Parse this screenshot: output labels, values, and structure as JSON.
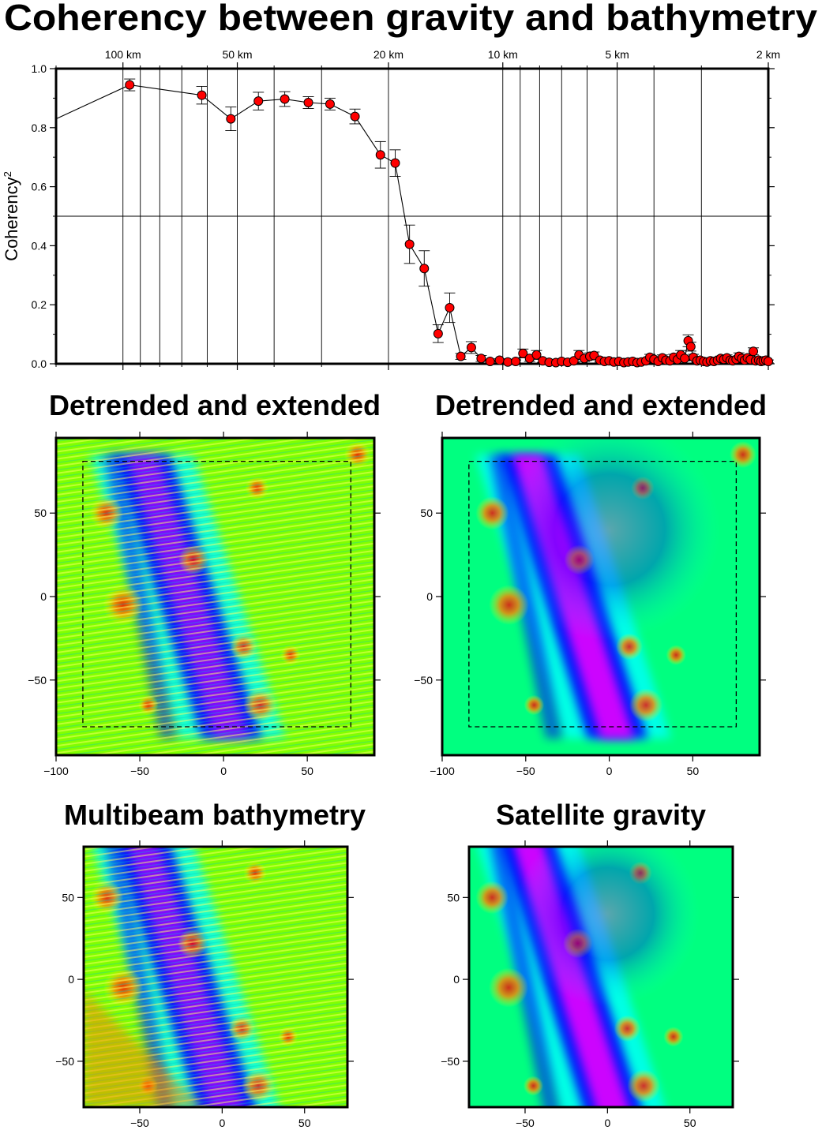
{
  "title": "Coherency between gravity and bathymetry",
  "chart_data": [
    {
      "type": "scatter",
      "title": "Coherency between gravity and bathymetry",
      "xlabel": "",
      "ylabel": "Coherency",
      "ylabel_superscript": "2",
      "x_unit": "km",
      "x_scale": "log-wavelength (decreasing to the right)",
      "xlim": [
        150,
        2
      ],
      "ylim": [
        0,
        1
      ],
      "y_ticks": [
        "0.0",
        "0.2",
        "0.4",
        "0.6",
        "0.8",
        "1.0"
      ],
      "x_top_ticks": [
        {
          "km": 100,
          "label": "100 km"
        },
        {
          "km": 50,
          "label": "50 km"
        },
        {
          "km": 20,
          "label": "20 km"
        },
        {
          "km": 10,
          "label": "10 km"
        },
        {
          "km": 5,
          "label": "5 km"
        },
        {
          "km": 2,
          "label": "2 km"
        }
      ],
      "x_grid_lines_km": [
        100,
        90,
        80,
        70,
        60,
        50,
        40,
        30,
        20,
        10,
        9,
        8,
        7,
        6,
        5,
        4,
        3,
        2
      ],
      "reference_line_y": 0.5,
      "grid": true,
      "line_start": {
        "wavelength_km": 150,
        "coherency": 0.83
      },
      "series": [
        {
          "marker_color": "#ff0000",
          "points": [
            [
              96,
              0.945,
              0.02
            ],
            [
              62,
              0.91,
              0.03
            ],
            [
              52,
              0.83,
              0.04
            ],
            [
              44,
              0.89,
              0.03
            ],
            [
              37.5,
              0.897,
              0.025
            ],
            [
              32.5,
              0.885,
              0.02
            ],
            [
              28.5,
              0.88,
              0.02
            ],
            [
              24.5,
              0.838,
              0.025
            ],
            [
              21,
              0.708,
              0.045
            ],
            [
              19.2,
              0.68,
              0.045
            ],
            [
              17.6,
              0.405,
              0.065
            ],
            [
              16.1,
              0.323,
              0.06
            ],
            [
              14.8,
              0.102,
              0.03
            ],
            [
              13.8,
              0.19,
              0.05
            ],
            [
              12.9,
              0.025,
              0.01
            ],
            [
              12.1,
              0.055,
              0.02
            ],
            [
              11.4,
              0.018,
              0.01
            ],
            [
              10.8,
              0.008,
              0.005
            ],
            [
              10.2,
              0.012,
              0.005
            ],
            [
              9.7,
              0.006,
              0.005
            ],
            [
              9.25,
              0.008,
              0.005
            ],
            [
              8.85,
              0.035,
              0.015
            ],
            [
              8.5,
              0.018,
              0.01
            ],
            [
              8.15,
              0.03,
              0.015
            ],
            [
              7.85,
              0.01,
              0.005
            ],
            [
              7.55,
              0.005,
              0.004
            ],
            [
              7.25,
              0.004,
              0.004
            ],
            [
              7.0,
              0.008,
              0.005
            ],
            [
              6.75,
              0.005,
              0.004
            ],
            [
              6.5,
              0.01,
              0.005
            ],
            [
              6.3,
              0.03,
              0.015
            ],
            [
              6.1,
              0.018,
              0.01
            ],
            [
              5.9,
              0.025,
              0.012
            ],
            [
              5.75,
              0.028,
              0.012
            ],
            [
              5.55,
              0.012,
              0.006
            ],
            [
              5.4,
              0.008,
              0.005
            ],
            [
              5.25,
              0.01,
              0.005
            ],
            [
              5.1,
              0.006,
              0.004
            ],
            [
              4.95,
              0.008,
              0.005
            ],
            [
              4.8,
              0.004,
              0.003
            ],
            [
              4.68,
              0.006,
              0.004
            ],
            [
              4.55,
              0.008,
              0.004
            ],
            [
              4.43,
              0.004,
              0.003
            ],
            [
              4.32,
              0.006,
              0.004
            ],
            [
              4.2,
              0.01,
              0.005
            ],
            [
              4.1,
              0.022,
              0.01
            ],
            [
              4.0,
              0.015,
              0.008
            ],
            [
              3.9,
              0.008,
              0.005
            ],
            [
              3.8,
              0.02,
              0.01
            ],
            [
              3.72,
              0.012,
              0.006
            ],
            [
              3.63,
              0.01,
              0.005
            ],
            [
              3.55,
              0.022,
              0.01
            ],
            [
              3.47,
              0.014,
              0.007
            ],
            [
              3.4,
              0.03,
              0.015
            ],
            [
              3.32,
              0.018,
              0.008
            ],
            [
              3.25,
              0.078,
              0.02
            ],
            [
              3.2,
              0.058,
              0.015
            ],
            [
              3.15,
              0.022,
              0.01
            ],
            [
              3.08,
              0.01,
              0.005
            ],
            [
              3.02,
              0.012,
              0.005
            ],
            [
              2.96,
              0.008,
              0.004
            ],
            [
              2.9,
              0.006,
              0.004
            ],
            [
              2.84,
              0.01,
              0.005
            ],
            [
              2.78,
              0.008,
              0.004
            ],
            [
              2.72,
              0.012,
              0.006
            ],
            [
              2.67,
              0.018,
              0.008
            ],
            [
              2.62,
              0.015,
              0.008
            ],
            [
              2.57,
              0.02,
              0.01
            ],
            [
              2.52,
              0.012,
              0.006
            ],
            [
              2.48,
              0.01,
              0.005
            ],
            [
              2.43,
              0.015,
              0.007
            ],
            [
              2.39,
              0.025,
              0.012
            ],
            [
              2.35,
              0.018,
              0.008
            ],
            [
              2.31,
              0.012,
              0.006
            ],
            [
              2.27,
              0.02,
              0.01
            ],
            [
              2.23,
              0.014,
              0.007
            ],
            [
              2.19,
              0.042,
              0.012
            ],
            [
              2.16,
              0.01,
              0.005
            ],
            [
              2.12,
              0.012,
              0.006
            ],
            [
              2.09,
              0.008,
              0.005
            ],
            [
              2.06,
              0.01,
              0.005
            ],
            [
              2.03,
              0.012,
              0.006
            ],
            [
              2.0,
              0.008,
              0.005
            ]
          ]
        }
      ]
    }
  ],
  "panels": [
    {
      "title": "Detrended and extended",
      "x_range": [
        -100,
        90
      ],
      "y_range": [
        -95,
        95
      ],
      "x_ticks": [
        "−100",
        "−50",
        "0",
        "50"
      ],
      "y_ticks": [
        "50",
        "0",
        "−50"
      ],
      "show_x_ticks": true,
      "inner_box": [
        -84,
        76,
        -78,
        81
      ],
      "style": "bathymetry",
      "colormap": [
        "#ff00ff",
        "#0000ff",
        "#00ffff",
        "#00ff80",
        "#80ff00",
        "#ffff00",
        "#ff8000",
        "#ff0000"
      ]
    },
    {
      "title": "Detrended and extended",
      "x_range": [
        -100,
        90
      ],
      "y_range": [
        -95,
        95
      ],
      "x_ticks": [
        "−100",
        "−50",
        "0",
        "50"
      ],
      "y_ticks": [
        "50",
        "0",
        "−50"
      ],
      "show_x_ticks": true,
      "inner_box": [
        -84,
        76,
        -78,
        81
      ],
      "style": "gravity",
      "colormap": [
        "#ff00ff",
        "#0000ff",
        "#00ffff",
        "#00ff80",
        "#80ff00",
        "#ffff00",
        "#ff8000",
        "#ff0000"
      ]
    },
    {
      "title": "Multibeam bathymetry",
      "x_range": [
        -84,
        76
      ],
      "y_range": [
        -78,
        81
      ],
      "x_ticks": [
        "−50",
        "0",
        "50"
      ],
      "y_ticks": [
        "50",
        "0",
        "−50"
      ],
      "show_x_ticks": true,
      "style": "bathymetry",
      "colormap": [
        "#ff00ff",
        "#0000ff",
        "#00ffff",
        "#00ff80",
        "#80ff00",
        "#ffff00",
        "#ff8000",
        "#ff0000"
      ]
    },
    {
      "title": "Satellite gravity",
      "x_range": [
        -84,
        76
      ],
      "y_range": [
        -78,
        81
      ],
      "x_ticks": [
        "−50",
        "0",
        "50"
      ],
      "y_ticks": [
        "50",
        "0",
        "−50"
      ],
      "show_x_ticks": true,
      "style": "gravity",
      "colormap": [
        "#ff00ff",
        "#0000ff",
        "#00ffff",
        "#00ff80",
        "#80ff00",
        "#ffff00",
        "#ff8000",
        "#ff0000"
      ]
    }
  ]
}
